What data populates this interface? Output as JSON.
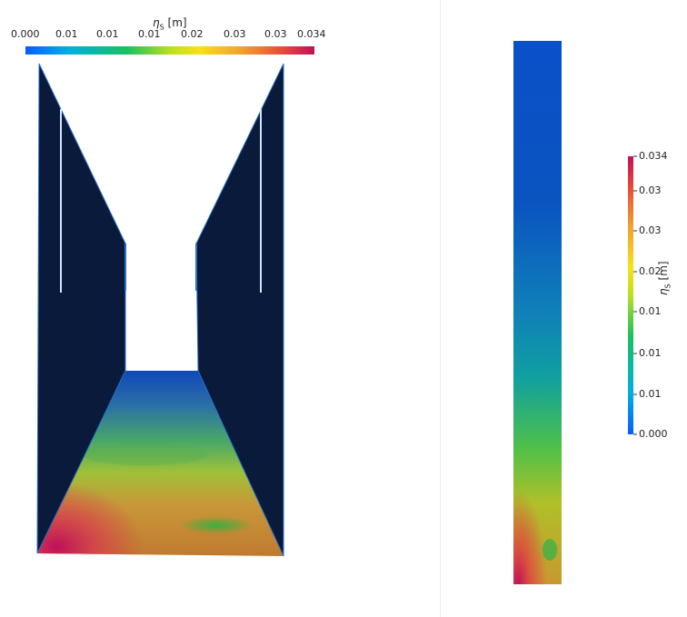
{
  "colorbar": {
    "title_symbol": "η",
    "title_subscript": "S",
    "title_unit": "[m]",
    "ticks": [
      "0.000",
      "0.01",
      "0.01",
      "0.01",
      "0.02",
      "0.03",
      "0.03",
      "0.034"
    ]
  },
  "colormap": [
    "#0a5cff",
    "#00b0e0",
    "#18c060",
    "#b8e020",
    "#f8e018",
    "#f0a030",
    "#e85038",
    "#c0105a"
  ],
  "background_color": "#ffffff",
  "wall_color": "#0a1a3a"
}
